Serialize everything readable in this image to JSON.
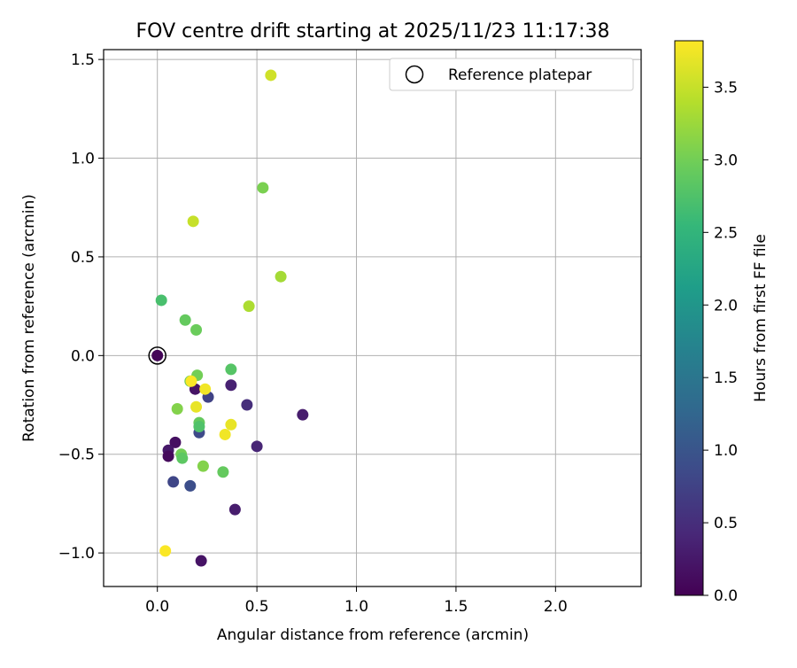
{
  "chart_data": {
    "type": "scatter",
    "title": "FOV centre drift starting at 2025/11/23 11:17:38",
    "xlabel": "Angular distance from reference (arcmin)",
    "ylabel": "Rotation from reference (arcmin)",
    "xlim": [
      -0.27,
      2.43
    ],
    "ylim": [
      -1.17,
      1.55
    ],
    "xticks": [
      0.0,
      0.5,
      1.0,
      1.5,
      2.0
    ],
    "xtick_labels": [
      "0.0",
      "0.5",
      "1.0",
      "1.5",
      "2.0"
    ],
    "yticks": [
      -1.0,
      -0.5,
      0.0,
      0.5,
      1.0,
      1.5
    ],
    "ytick_labels": [
      "−1.0",
      "−0.5",
      "0.0",
      "0.5",
      "1.0",
      "1.5"
    ],
    "grid": true,
    "legend": {
      "placement": "top-right",
      "label": "Reference platepar"
    },
    "reference_point": {
      "x": 0.0,
      "y": 0.0
    },
    "colorbar": {
      "label": "Hours from first FF file",
      "colormap": "viridis",
      "range": [
        0.0,
        3.82
      ],
      "ticks": [
        0.0,
        0.5,
        1.0,
        1.5,
        2.0,
        2.5,
        3.0,
        3.5
      ],
      "tick_labels": [
        "0.0",
        "0.5",
        "1.0",
        "1.5",
        "2.0",
        "2.5",
        "3.0",
        "3.5"
      ]
    },
    "points": [
      {
        "x": 0.0,
        "y": 0.0,
        "t": 0.05
      },
      {
        "x": 0.73,
        "y": -0.3,
        "t": 0.3
      },
      {
        "x": 0.5,
        "y": -0.46,
        "t": 0.4
      },
      {
        "x": 0.45,
        "y": -0.25,
        "t": 0.5
      },
      {
        "x": 0.37,
        "y": -0.15,
        "t": 0.35
      },
      {
        "x": 0.39,
        "y": -0.78,
        "t": 0.3
      },
      {
        "x": 0.22,
        "y": -1.04,
        "t": 0.2
      },
      {
        "x": 0.19,
        "y": -0.17,
        "t": 0.2
      },
      {
        "x": 0.09,
        "y": -0.44,
        "t": 0.15
      },
      {
        "x": 0.055,
        "y": -0.48,
        "t": 0.25
      },
      {
        "x": 0.055,
        "y": -0.51,
        "t": 0.1
      },
      {
        "x": 0.08,
        "y": -0.64,
        "t": 0.8
      },
      {
        "x": 0.165,
        "y": -0.66,
        "t": 0.9
      },
      {
        "x": 0.21,
        "y": -0.39,
        "t": 0.85
      },
      {
        "x": 0.255,
        "y": -0.21,
        "t": 0.75
      },
      {
        "x": 0.02,
        "y": 0.28,
        "t": 2.7
      },
      {
        "x": 0.14,
        "y": 0.18,
        "t": 2.9
      },
      {
        "x": 0.195,
        "y": 0.13,
        "t": 2.95
      },
      {
        "x": 0.37,
        "y": -0.07,
        "t": 2.8
      },
      {
        "x": 0.2,
        "y": -0.1,
        "t": 3.0
      },
      {
        "x": 0.165,
        "y": -0.13,
        "t": 2.9
      },
      {
        "x": 0.21,
        "y": -0.34,
        "t": 2.9
      },
      {
        "x": 0.21,
        "y": -0.36,
        "t": 2.75
      },
      {
        "x": 0.12,
        "y": -0.5,
        "t": 3.0
      },
      {
        "x": 0.125,
        "y": -0.52,
        "t": 2.85
      },
      {
        "x": 0.33,
        "y": -0.59,
        "t": 2.9
      },
      {
        "x": 0.23,
        "y": -0.56,
        "t": 3.1
      },
      {
        "x": 0.1,
        "y": -0.27,
        "t": 3.1
      },
      {
        "x": 0.53,
        "y": 0.85,
        "t": 3.05
      },
      {
        "x": 0.62,
        "y": 0.4,
        "t": 3.3
      },
      {
        "x": 0.46,
        "y": 0.25,
        "t": 3.35
      },
      {
        "x": 0.18,
        "y": 0.68,
        "t": 3.5
      },
      {
        "x": 0.57,
        "y": 1.42,
        "t": 3.55
      },
      {
        "x": 0.17,
        "y": -0.13,
        "t": 3.8
      },
      {
        "x": 0.24,
        "y": -0.17,
        "t": 3.75
      },
      {
        "x": 0.195,
        "y": -0.26,
        "t": 3.7
      },
      {
        "x": 0.37,
        "y": -0.35,
        "t": 3.7
      },
      {
        "x": 0.34,
        "y": -0.4,
        "t": 3.75
      },
      {
        "x": 0.04,
        "y": -0.99,
        "t": 3.8
      }
    ]
  }
}
